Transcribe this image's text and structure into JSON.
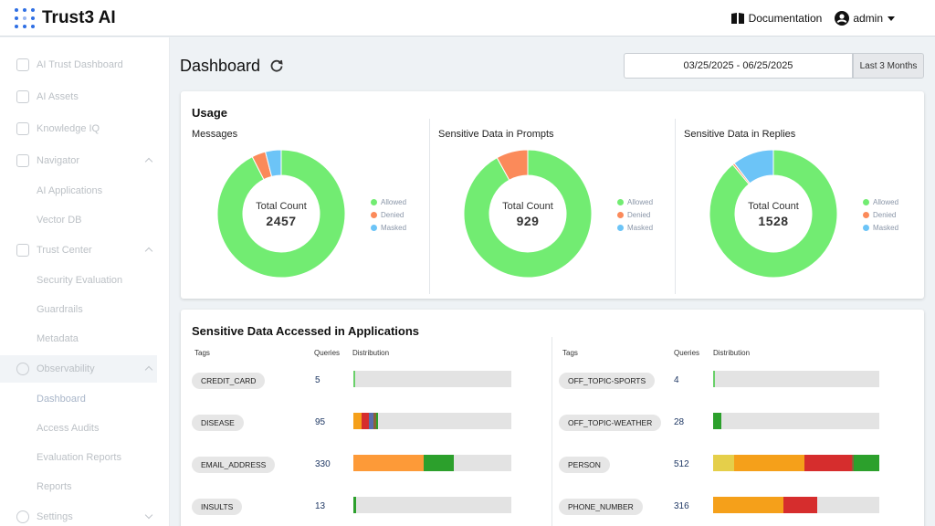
{
  "app": {
    "name": "Trust3 AI"
  },
  "header": {
    "documentation_label": "Documentation",
    "user_label": "admin"
  },
  "sidebar": {
    "items": [
      {
        "label": "AI Trust Dashboard",
        "icon": "grid-icon"
      },
      {
        "label": "AI Assets",
        "icon": "assets-icon"
      },
      {
        "label": "Knowledge IQ",
        "icon": "knowledge-icon"
      },
      {
        "label": "Navigator",
        "icon": "navigator-icon"
      },
      {
        "label": "AI Applications"
      },
      {
        "label": "Vector DB"
      },
      {
        "label": "Trust Center",
        "icon": "shield-icon"
      },
      {
        "label": "Security Evaluation"
      },
      {
        "label": "Guardrails"
      },
      {
        "label": "Metadata"
      },
      {
        "label": "Observability",
        "icon": "observability-icon"
      },
      {
        "label": "Dashboard"
      },
      {
        "label": "Access Audits"
      },
      {
        "label": "Evaluation Reports"
      },
      {
        "label": "Reports"
      },
      {
        "label": "Settings",
        "icon": "gear-icon"
      }
    ]
  },
  "page": {
    "title": "Dashboard"
  },
  "date_filter": {
    "range": "03/25/2025 - 06/25/2025",
    "preset": "Last 3 Months"
  },
  "usage": {
    "title": "Usage",
    "legend": [
      "Allowed",
      "Denied",
      "Masked"
    ],
    "colors": {
      "allowed": "#72ec72",
      "denied": "#fb8a5a",
      "masked": "#6cc4f7"
    },
    "center_label": "Total Count",
    "charts": [
      {
        "title": "Messages",
        "total": "2457",
        "allowed": 0.925,
        "denied": 0.035,
        "masked": 0.04
      },
      {
        "title": "Sensitive Data in Prompts",
        "total": "929",
        "allowed": 0.92,
        "denied": 0.08,
        "masked": 0.0
      },
      {
        "title": "Sensitive Data in Replies",
        "total": "1528",
        "allowed": 0.89,
        "denied": 0.005,
        "masked": 0.105
      }
    ]
  },
  "sensitive": {
    "title": "Sensitive Data Accessed in Applications",
    "headers": {
      "tags": "Tags",
      "queries": "Queries",
      "distribution": "Distribution"
    },
    "left": [
      {
        "tag": "CREDIT_CARD",
        "queries": "5",
        "segments": [
          {
            "color": "#6ad06a",
            "value": 0.01
          }
        ]
      },
      {
        "tag": "DISEASE",
        "queries": "95",
        "segments": [
          {
            "color": "#f5a01a",
            "value": 0.05
          },
          {
            "color": "#d62d2d",
            "value": 0.05
          },
          {
            "color": "#5a6dac",
            "value": 0.025
          },
          {
            "color": "#8a6238",
            "value": 0.02
          },
          {
            "color": "#2ca02c",
            "value": 0.01
          }
        ]
      },
      {
        "tag": "EMAIL_ADDRESS",
        "queries": "330",
        "segments": [
          {
            "color": "#fd9a38",
            "value": 0.445
          },
          {
            "color": "#2ca02c",
            "value": 0.19
          }
        ]
      },
      {
        "tag": "INSULTS",
        "queries": "13",
        "segments": [
          {
            "color": "#2ca02c",
            "value": 0.02
          }
        ]
      }
    ],
    "right": [
      {
        "tag": "OFF_TOPIC-SPORTS",
        "queries": "4",
        "segments": [
          {
            "color": "#6ad06a",
            "value": 0.01
          }
        ]
      },
      {
        "tag": "OFF_TOPIC-WEATHER",
        "queries": "28",
        "segments": [
          {
            "color": "#2ca02c",
            "value": 0.05
          }
        ]
      },
      {
        "tag": "PERSON",
        "queries": "512",
        "segments": [
          {
            "color": "#e5cf4a",
            "value": 0.13
          },
          {
            "color": "#f5a01a",
            "value": 0.435
          },
          {
            "color": "#d62d2d",
            "value": 0.29
          },
          {
            "color": "#8a6238",
            "value": 0.015
          },
          {
            "color": "#2ca02c",
            "value": 0.155
          }
        ]
      },
      {
        "tag": "PHONE_NUMBER",
        "queries": "316",
        "segments": [
          {
            "color": "#f5a01a",
            "value": 0.425
          },
          {
            "color": "#d62d2d",
            "value": 0.2
          }
        ]
      }
    ]
  }
}
